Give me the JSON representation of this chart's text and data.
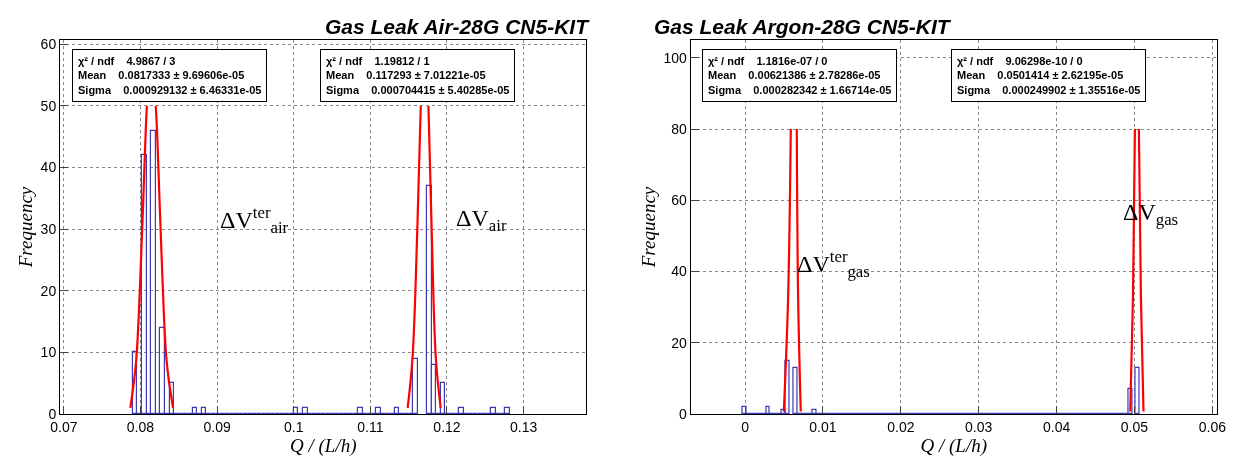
{
  "chart_data": [
    {
      "type": "histogram",
      "title": "Gas Leak Air-28G CN5-KIT",
      "xlabel": "Q / (L/h)",
      "ylabel": "Frequency",
      "color": "#3b3bb5",
      "bins": [
        0.079,
        0.0796,
        0.0802,
        0.0808,
        0.0814,
        0.082,
        0.0826,
        0.0832,
        0.0838,
        0.0844,
        0.085,
        0.0856,
        0.0862,
        0.0868,
        0.0874,
        0.088,
        0.0886,
        0.0892,
        0.0898,
        0.0904,
        0.091,
        0.0916,
        0.0922,
        0.0928,
        0.0934,
        0.094,
        0.0946,
        0.0952,
        0.0958,
        0.0964,
        0.097,
        0.0976,
        0.0982,
        0.0988,
        0.0994,
        0.1,
        0.1006,
        0.1012,
        0.1018,
        0.1024,
        0.103,
        0.1036,
        0.1042,
        0.1048,
        0.1054,
        0.106,
        0.1066,
        0.1072,
        0.1078,
        0.1084,
        0.109,
        0.1096,
        0.1102,
        0.1108,
        0.1114,
        0.112,
        0.1126,
        0.1132,
        0.1138,
        0.1144,
        0.115,
        0.1156,
        0.1162,
        0.1168,
        0.1174,
        0.118,
        0.1186,
        0.1192,
        0.1198,
        0.1204,
        0.121,
        0.1216,
        0.1222,
        0.1228,
        0.1234,
        0.124,
        0.1246,
        0.1252,
        0.1258,
        0.1264,
        0.127,
        0.1276,
        0.1282
      ],
      "values": [
        10,
        0,
        42,
        0,
        46,
        0,
        14,
        0,
        5,
        0,
        0,
        0,
        0,
        1,
        0,
        1,
        0,
        0,
        0,
        0,
        0,
        0,
        0,
        0,
        0,
        0,
        0,
        0,
        0,
        0,
        0,
        0,
        0,
        0,
        0,
        1,
        0,
        1,
        0,
        0,
        0,
        0,
        0,
        0,
        0,
        0,
        0,
        0,
        0,
        1,
        0,
        0,
        0,
        1,
        0,
        0,
        0,
        1,
        0,
        0,
        0,
        9,
        null,
        null,
        37,
        8,
        0,
        5,
        0,
        0,
        0,
        1,
        0,
        0,
        0,
        0,
        0,
        0,
        1,
        0,
        0,
        1
      ],
      "series": [
        {
          "type": "line",
          "color": "#ff0000",
          "x": [
            0.07868,
            0.07943,
            0.08006,
            0.08069,
            0.08084,
            null,
            0.08199,
            0.08216,
            0.08279,
            0.08342,
            0.08425
          ],
          "values": [
            1,
            8.5,
            24.6,
            46.1,
            50,
            null,
            50,
            46.1,
            24.6,
            8.5,
            1
          ]
        },
        {
          "type": "line",
          "color": "#ff0000",
          "x": [
            0.11487,
            0.1155,
            0.11613,
            0.11658,
            null,
            0.11758,
            0.118,
            0.11855,
            0.11918
          ],
          "values": [
            1,
            9,
            30,
            50,
            null,
            50,
            30,
            9,
            1
          ]
        }
      ],
      "xlim": [
        0.0695,
        0.1382
      ],
      "ylim": [
        0,
        60.7
      ],
      "xticks": [
        0.07,
        0.08,
        0.09,
        0.1,
        0.11,
        0.12,
        0.13
      ],
      "yticks": [
        0,
        10,
        20,
        30,
        40,
        50,
        60
      ],
      "grid": true,
      "annotations": [
        "χ² / ndf\t4.9867 / 3\nMean\t0.0817333 ± 9.69606e-05\nSigma\t0.000929132 ± 6.46331e-05",
        "χ² / ndf\t1.19812 / 1\nMean\t0.117293 ± 7.01221e-05\nSigma\t0.000704415 ± 5.40285e-05",
        "ΔV$^{ter}$$_{air}$",
        "ΔV$_{air}$"
      ]
    },
    {
      "type": "histogram",
      "title": "Gas Leak Argon-28G CN5-KIT",
      "xlabel": "Q / (L/h)",
      "ylabel": "Frequency",
      "color": "#3b3bb5",
      "bins": [
        -0.0003,
        0.0002,
        0.0007,
        0.0012,
        0.0017,
        0.0022,
        0.0027,
        0.0032,
        0.0037,
        0.0042,
        0.0047,
        0.0052,
        0.0057,
        0.0062,
        0.0067,
        0.0072,
        0.0077,
        0.0082,
        0.0087,
        0.0092,
        0.0097,
        0.0102,
        0.0107,
        0.0112,
        0.0117,
        0.0122,
        0.0127,
        0.0132,
        0.0137,
        0.0142,
        0.0147,
        0.0152,
        0.0157,
        0.0162,
        0.0167,
        0.0172,
        0.0177,
        0.0182,
        0.0187,
        0.0192,
        0.0197,
        0.0202,
        0.0207,
        0.0212,
        0.0217,
        0.0222,
        0.0227,
        0.0232,
        0.0237,
        0.0242,
        0.0247,
        0.0252,
        0.0257,
        0.0262,
        0.0267,
        0.0272,
        0.0277,
        0.0282,
        0.0287,
        0.0292,
        0.0297,
        0.0302,
        0.0307,
        0.0312,
        0.0317,
        0.0322,
        0.0327,
        0.0332,
        0.0337,
        0.0342,
        0.0347,
        0.0352,
        0.0357,
        0.0362,
        0.0367,
        0.0372,
        0.0377,
        0.0382,
        0.0387,
        0.0392,
        0.0397,
        0.0402,
        0.0407,
        0.0412,
        0.0417,
        0.0422,
        0.0427,
        0.0432,
        0.0437,
        0.0442,
        0.0447,
        0.0452,
        0.0457,
        0.0462,
        0.0467,
        0.0472,
        0.0477,
        0.0482,
        0.0487,
        0.0492,
        0.0497,
        0.0502,
        0.0507
      ],
      "values": [
        2,
        0,
        0,
        0,
        0,
        0,
        2,
        0,
        0,
        0,
        1,
        15,
        null,
        13,
        0,
        0,
        0,
        0,
        1,
        0,
        0,
        0,
        0,
        0,
        0,
        0,
        0,
        0,
        0,
        0,
        0,
        0,
        0,
        0,
        0,
        0,
        0,
        0,
        0,
        0,
        0,
        0,
        0,
        0,
        0,
        0,
        0,
        0,
        0,
        0,
        0,
        0,
        0,
        0,
        0,
        0,
        0,
        0,
        0,
        0,
        0,
        0,
        0,
        0,
        0,
        0,
        0,
        0,
        0,
        0,
        0,
        0,
        0,
        0,
        0,
        0,
        0,
        0,
        0,
        0,
        0,
        0,
        0,
        0,
        0,
        0,
        0,
        0,
        0,
        0,
        0,
        0,
        0,
        0,
        0,
        0,
        0,
        0,
        0,
        7,
        null,
        13
      ],
      "series": [
        {
          "type": "line",
          "color": "#ff0000",
          "x": [
            0.00498,
            0.00553,
            0.00587,
            null,
            0.00664,
            0.00681,
            0.00715
          ],
          "values": [
            0.7,
            33,
            80,
            null,
            80,
            33,
            0.7
          ]
        },
        {
          "type": "line",
          "color": "#ff0000",
          "x": [
            0.04946,
            0.04981,
            0.05006,
            null,
            0.05057,
            0.05083,
            0.05116
          ],
          "values": [
            0.7,
            33,
            80,
            null,
            80,
            33,
            0.7
          ]
        }
      ],
      "xlim": [
        -0.007,
        0.0606
      ],
      "ylim": [
        0,
        105
      ],
      "xticks": [
        0,
        0.01,
        0.02,
        0.03,
        0.04,
        0.05,
        0.06
      ],
      "yticks": [
        0,
        20,
        40,
        60,
        80,
        100
      ],
      "grid": true,
      "annotations": [
        "χ² / ndf\t1.1816e-07 / 0\nMean\t0.00621386 ± 2.78286e-05\nSigma\t0.000282342 ± 1.66714e-05",
        "χ² / ndf\t9.06298e-10 / 0\nMean\t0.0501414 ± 2.62195e-05\nSigma\t0.000249902 ± 1.35516e-05",
        "ΔV$^{ter}$$_{gas}$",
        "ΔV$_{gas}$"
      ]
    }
  ]
}
